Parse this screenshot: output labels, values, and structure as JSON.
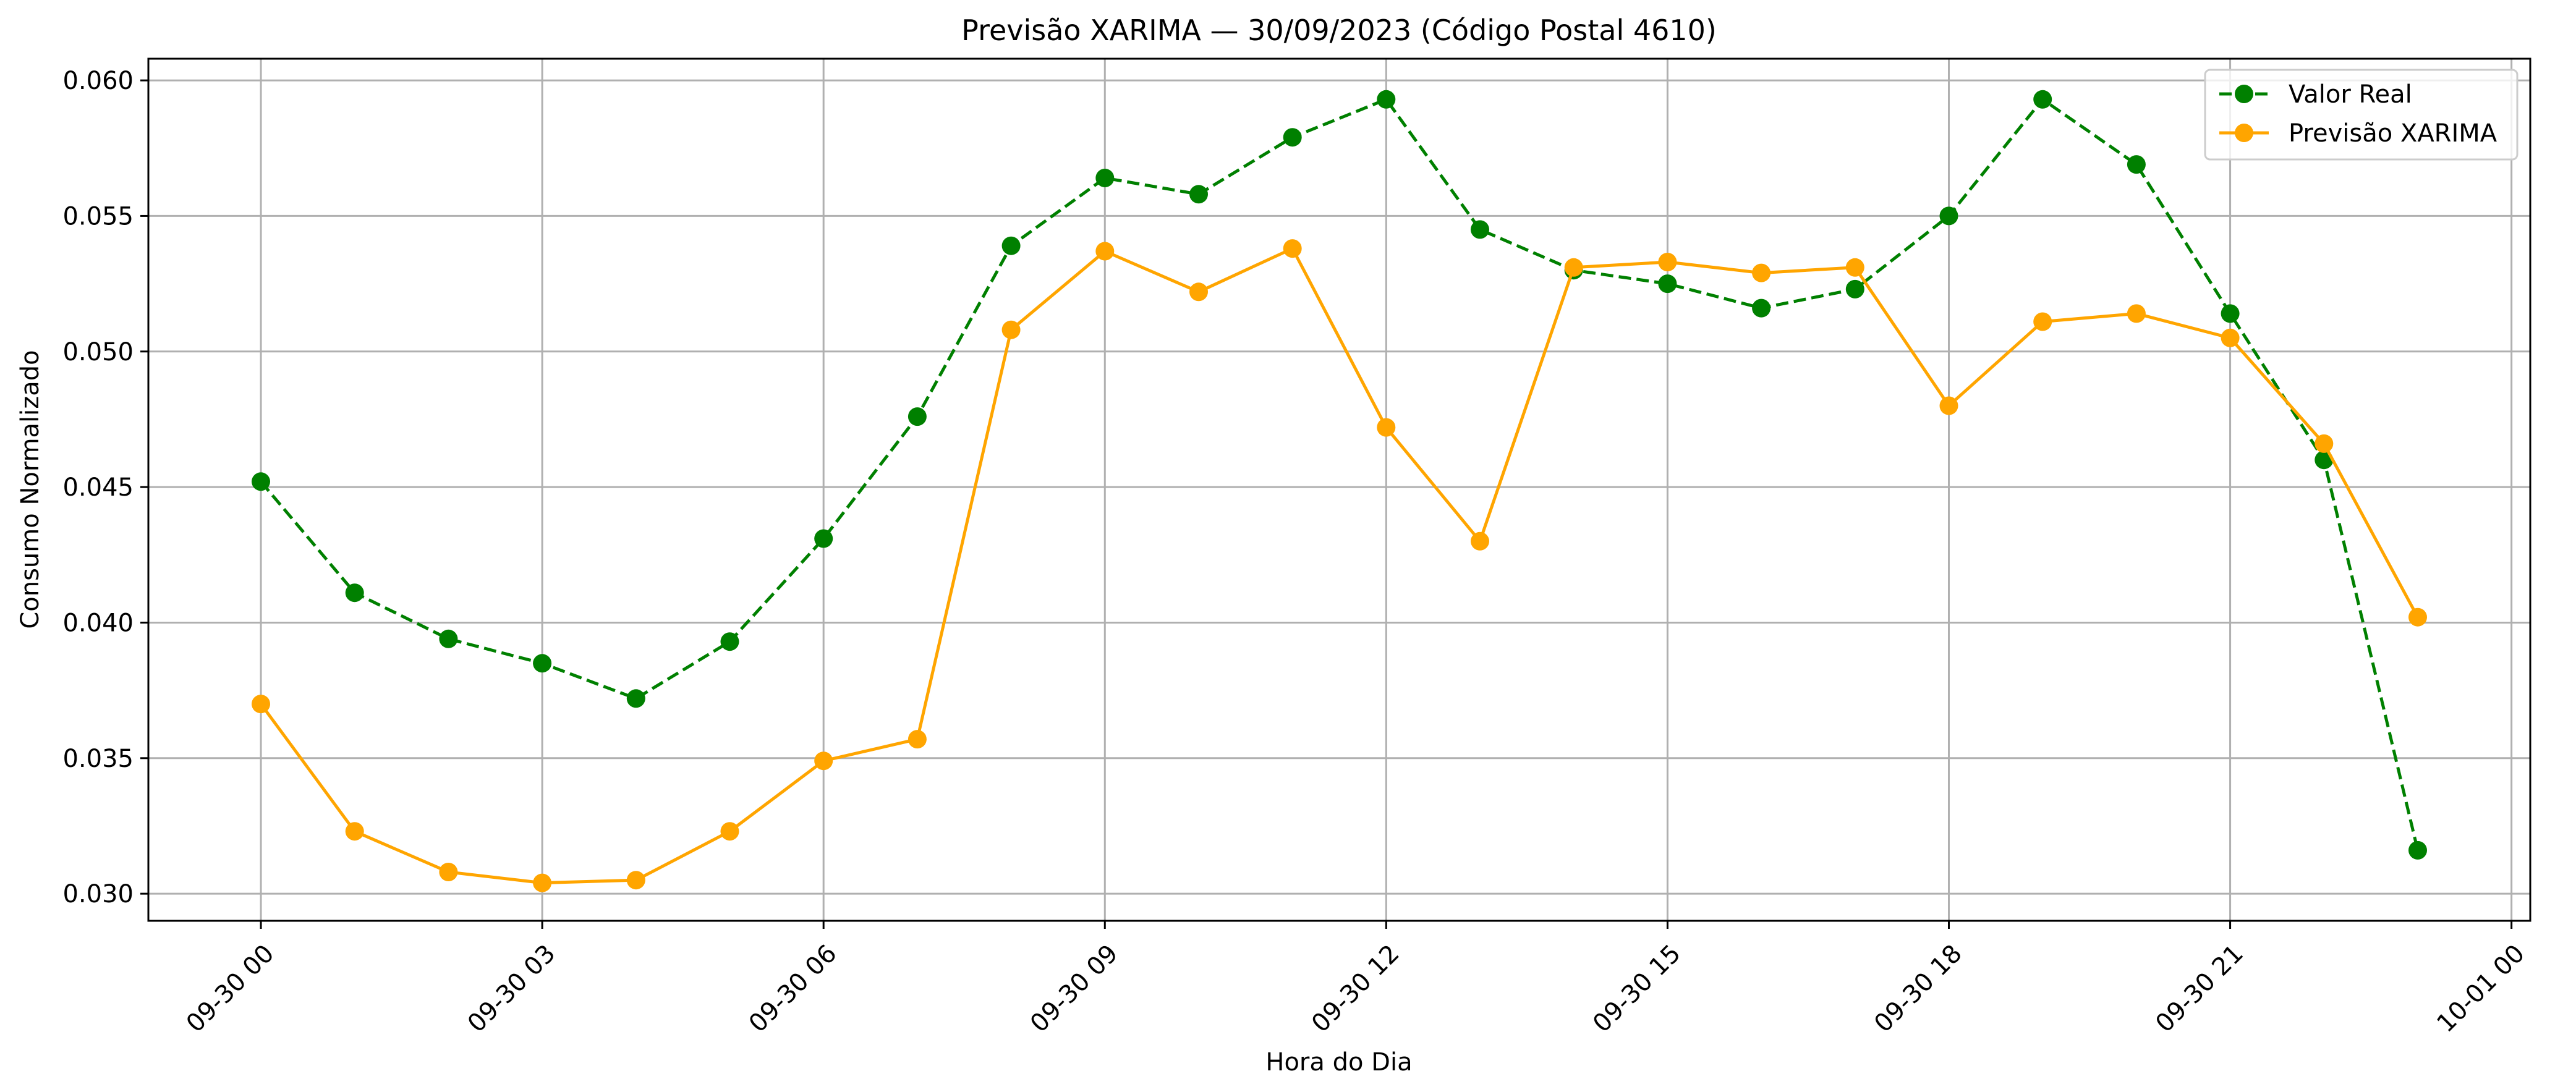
{
  "chart_data": {
    "type": "line",
    "title": "Previsão XARIMA — 30/09/2023 (Código Postal 4610)",
    "xlabel": "Hora do Dia",
    "ylabel": "Consumo Normalizado",
    "x": [
      "2023-09-30 00:00",
      "2023-09-30 01:00",
      "2023-09-30 02:00",
      "2023-09-30 03:00",
      "2023-09-30 04:00",
      "2023-09-30 05:00",
      "2023-09-30 06:00",
      "2023-09-30 07:00",
      "2023-09-30 08:00",
      "2023-09-30 09:00",
      "2023-09-30 10:00",
      "2023-09-30 11:00",
      "2023-09-30 12:00",
      "2023-09-30 13:00",
      "2023-09-30 14:00",
      "2023-09-30 15:00",
      "2023-09-30 16:00",
      "2023-09-30 17:00",
      "2023-09-30 18:00",
      "2023-09-30 19:00",
      "2023-09-30 20:00",
      "2023-09-30 21:00",
      "2023-09-30 22:00",
      "2023-09-30 23:00"
    ],
    "xlim": [
      "2023-09-29 22:48",
      "2023-10-01 00:12"
    ],
    "ylim": [
      0.029,
      0.0608
    ],
    "x_ticks": [
      "09-30 00",
      "09-30 03",
      "09-30 06",
      "09-30 09",
      "09-30 12",
      "09-30 15",
      "09-30 18",
      "09-30 21",
      "10-01 00"
    ],
    "y_ticks": [
      "0.030",
      "0.035",
      "0.040",
      "0.045",
      "0.050",
      "0.055",
      "0.060"
    ],
    "grid": true,
    "legend_position": "top-right",
    "series": [
      {
        "name": "Valor Real",
        "color": "#008000",
        "line_style": "dashed",
        "marker": "circle",
        "values": [
          0.0452,
          0.0411,
          0.0394,
          0.0385,
          0.0372,
          0.0393,
          0.0431,
          0.0476,
          0.0539,
          0.0564,
          0.0558,
          0.0579,
          0.0593,
          0.0545,
          0.053,
          0.0525,
          0.0516,
          0.0523,
          0.055,
          0.0593,
          0.0569,
          0.0514,
          0.046,
          0.0316
        ]
      },
      {
        "name": "Previsão XARIMA",
        "color": "#ffa500",
        "line_style": "solid",
        "marker": "circle",
        "values": [
          0.037,
          0.0323,
          0.0308,
          0.0304,
          0.0305,
          0.0323,
          0.0349,
          0.0357,
          0.0508,
          0.0537,
          0.0522,
          0.0538,
          0.0472,
          0.043,
          0.0531,
          0.0533,
          0.0529,
          0.0531,
          0.048,
          0.0511,
          0.0514,
          0.0505,
          0.0466,
          0.0402
        ]
      }
    ]
  }
}
